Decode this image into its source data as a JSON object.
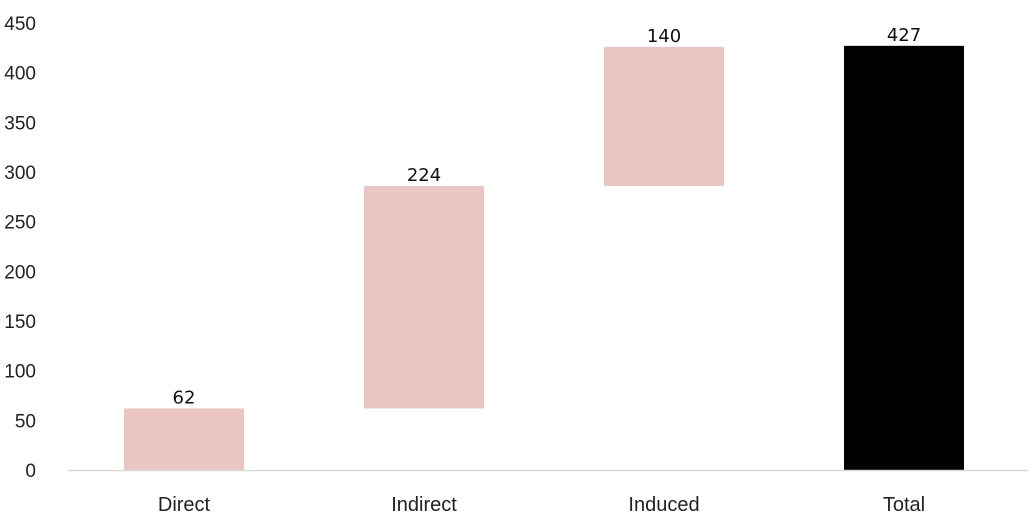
{
  "chart_data": {
    "type": "bar",
    "subtype": "waterfall",
    "categories": [
      "Direct",
      "Indirect",
      "Induced",
      "Total"
    ],
    "values": [
      62,
      224,
      140,
      427
    ],
    "data_labels": [
      "62",
      "224",
      "140",
      "427"
    ],
    "is_total": [
      false,
      false,
      false,
      true
    ],
    "title": "",
    "xlabel": "",
    "ylabel": "",
    "ylim": [
      0,
      450
    ],
    "yticks": [
      0,
      50,
      100,
      150,
      200,
      250,
      300,
      350,
      400,
      450
    ],
    "grid": false,
    "legend": "none",
    "colors": {
      "increment": "#ebc5c4",
      "total": "#000000",
      "axis": "#d9d9d9"
    }
  }
}
